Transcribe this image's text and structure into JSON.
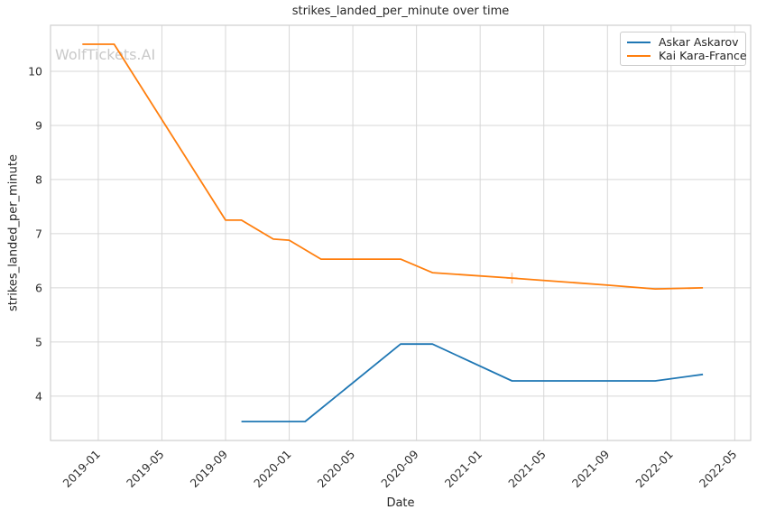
{
  "chart_data": {
    "type": "line",
    "title": "strikes_landed_per_minute over time",
    "xlabel": "Date",
    "ylabel": "strikes_landed_per_minute",
    "watermark": "WolfTickets.AI",
    "grid": true,
    "legend_position": "upper right",
    "x_ticks": [
      "2019-01",
      "2019-05",
      "2019-09",
      "2020-01",
      "2020-05",
      "2020-09",
      "2021-01",
      "2021-05",
      "2021-09",
      "2022-01",
      "2022-05"
    ],
    "y_ticks": [
      4,
      5,
      6,
      7,
      8,
      9,
      10
    ],
    "xlim": [
      "2018-10",
      "2022-06"
    ],
    "ylim": [
      3.18,
      10.85
    ],
    "colors": {
      "grid": "#d7d7d7",
      "spine": "#cfcfcf",
      "text": "#262626",
      "watermark": "#c9c9c9",
      "askar": "#1f77b4",
      "kai": "#ff7f0e",
      "marker_plus": "#ffc9a0"
    },
    "series": [
      {
        "name": "Askar Askarov",
        "color": "#1f77b4",
        "points": [
          [
            "2019-10",
            3.53
          ],
          [
            "2020-02",
            3.53
          ],
          [
            "2020-08",
            4.96
          ],
          [
            "2020-10",
            4.96
          ],
          [
            "2021-03",
            4.28
          ],
          [
            "2021-12",
            4.28
          ],
          [
            "2022-03",
            4.4
          ]
        ]
      },
      {
        "name": "Kai Kara-France",
        "color": "#ff7f0e",
        "points": [
          [
            "2018-12",
            10.5
          ],
          [
            "2019-02",
            10.5
          ],
          [
            "2019-09",
            7.25
          ],
          [
            "2019-10",
            7.25
          ],
          [
            "2019-12",
            6.9
          ],
          [
            "2020-01",
            6.88
          ],
          [
            "2020-03",
            6.53
          ],
          [
            "2020-08",
            6.53
          ],
          [
            "2020-10",
            6.28
          ],
          [
            "2021-03",
            6.18
          ],
          [
            "2021-09",
            6.05
          ],
          [
            "2021-12",
            5.98
          ],
          [
            "2022-03",
            6.0
          ]
        ]
      }
    ],
    "markers": [
      {
        "series": "Kai Kara-France",
        "x": "2021-03",
        "y": 6.18,
        "shape": "plus",
        "color": "#ffc9a0"
      }
    ]
  }
}
